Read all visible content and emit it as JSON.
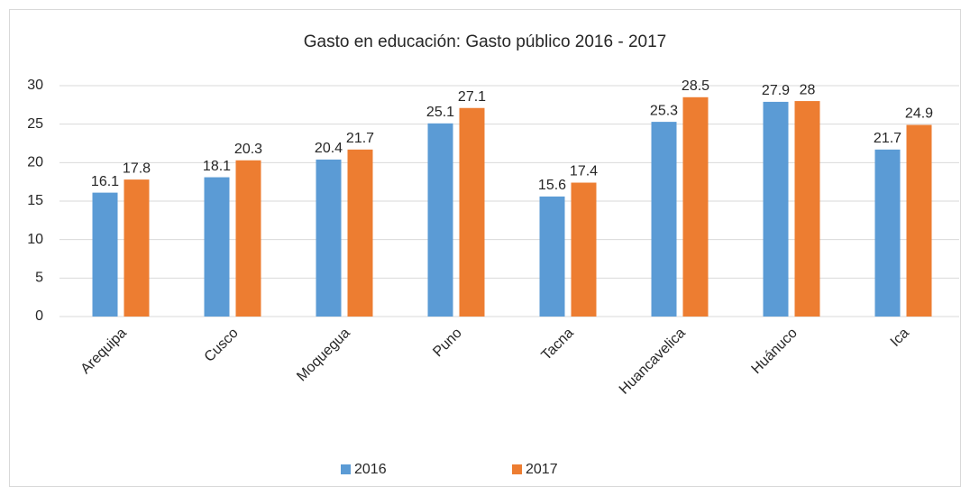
{
  "chart_data": {
    "type": "bar",
    "title": "Gasto en educación: Gasto público 2016 - 2017",
    "categories": [
      "Arequipa",
      "Cusco",
      "Moquegua",
      "Puno",
      "Tacna",
      "Huancavelica",
      "Huánuco",
      "Ica"
    ],
    "series": [
      {
        "name": "2016",
        "color": "#5b9bd5",
        "values": [
          16.1,
          18.1,
          20.4,
          25.1,
          15.6,
          25.3,
          27.9,
          21.7
        ]
      },
      {
        "name": "2017",
        "color": "#ed7d31",
        "values": [
          17.8,
          20.3,
          21.7,
          27.1,
          17.4,
          28.5,
          28,
          24.9
        ]
      }
    ],
    "ylim": [
      0,
      30
    ],
    "yticks": [
      0,
      5,
      10,
      15,
      20,
      25,
      30
    ],
    "grid": true,
    "legend": "bottom"
  }
}
